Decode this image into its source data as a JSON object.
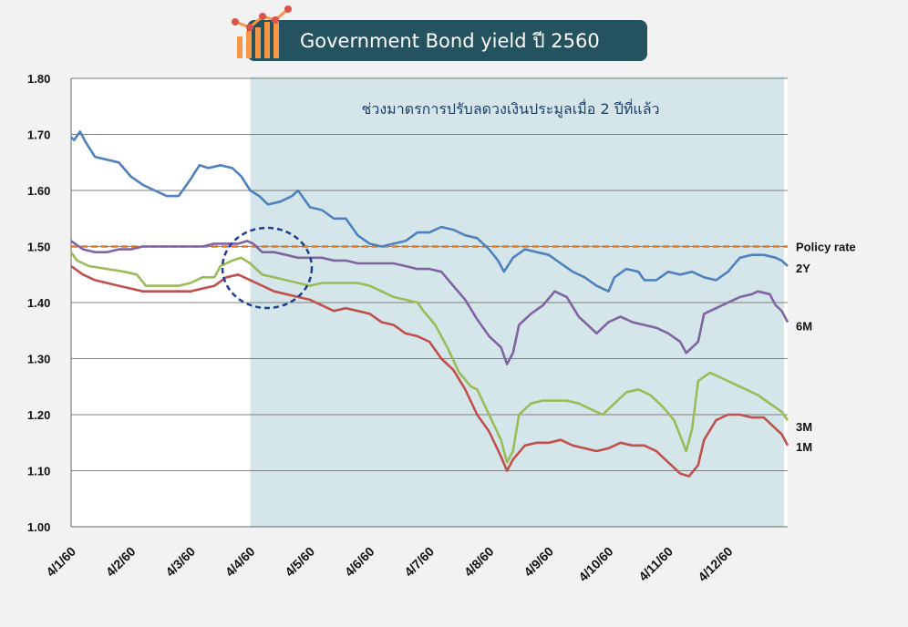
{
  "title": "Government Bond yield ปี 2560",
  "chart_data": {
    "type": "line",
    "title": "Government Bond yield ปี 2560",
    "ylim": [
      1.0,
      1.8
    ],
    "yticks": [
      "1.00",
      "1.10",
      "1.20",
      "1.30",
      "1.40",
      "1.50",
      "1.60",
      "1.70",
      "1.80"
    ],
    "xlabels": [
      "4/1/60",
      "4/2/60",
      "4/3/60",
      "4/4/60",
      "4/5/60",
      "4/6/60",
      "4/7/60",
      "4/8/60",
      "4/9/60",
      "4/10/60",
      "4/11/60",
      "4/12/60"
    ],
    "grid": true,
    "highlight": {
      "from": "4/4/60",
      "label": "ช่วงมาตรการปรับลดวงเงินประมูลเมื่อ  2 ปีที่แล้ว",
      "color": "#d5e6ea"
    },
    "policy_rate": {
      "name": "Policy rate",
      "value": 1.5,
      "color": "#e07b22"
    },
    "series": [
      {
        "name": "2Y",
        "color": "#4f81bd",
        "points": [
          [
            0,
            1.695
          ],
          [
            0.05,
            1.69
          ],
          [
            0.15,
            1.705
          ],
          [
            0.25,
            1.685
          ],
          [
            0.4,
            1.66
          ],
          [
            0.6,
            1.655
          ],
          [
            0.8,
            1.65
          ],
          [
            1.0,
            1.625
          ],
          [
            1.2,
            1.61
          ],
          [
            1.4,
            1.6
          ],
          [
            1.6,
            1.59
          ],
          [
            1.8,
            1.59
          ],
          [
            2.0,
            1.62
          ],
          [
            2.15,
            1.645
          ],
          [
            2.3,
            1.64
          ],
          [
            2.5,
            1.645
          ],
          [
            2.7,
            1.64
          ],
          [
            2.85,
            1.625
          ],
          [
            3.0,
            1.6
          ],
          [
            3.15,
            1.59
          ],
          [
            3.3,
            1.575
          ],
          [
            3.5,
            1.58
          ],
          [
            3.7,
            1.59
          ],
          [
            3.8,
            1.6
          ],
          [
            4.0,
            1.57
          ],
          [
            4.2,
            1.565
          ],
          [
            4.4,
            1.55
          ],
          [
            4.6,
            1.55
          ],
          [
            4.8,
            1.52
          ],
          [
            5.0,
            1.505
          ],
          [
            5.2,
            1.5
          ],
          [
            5.4,
            1.505
          ],
          [
            5.6,
            1.51
          ],
          [
            5.8,
            1.525
          ],
          [
            6.0,
            1.525
          ],
          [
            6.2,
            1.535
          ],
          [
            6.4,
            1.53
          ],
          [
            6.6,
            1.52
          ],
          [
            6.8,
            1.515
          ],
          [
            7.0,
            1.495
          ],
          [
            7.15,
            1.475
          ],
          [
            7.25,
            1.455
          ],
          [
            7.4,
            1.48
          ],
          [
            7.6,
            1.495
          ],
          [
            7.8,
            1.49
          ],
          [
            8.0,
            1.485
          ],
          [
            8.2,
            1.47
          ],
          [
            8.4,
            1.455
          ],
          [
            8.6,
            1.445
          ],
          [
            8.8,
            1.43
          ],
          [
            9.0,
            1.42
          ],
          [
            9.1,
            1.445
          ],
          [
            9.3,
            1.46
          ],
          [
            9.5,
            1.455
          ],
          [
            9.6,
            1.44
          ],
          [
            9.8,
            1.44
          ],
          [
            10.0,
            1.455
          ],
          [
            10.2,
            1.45
          ],
          [
            10.4,
            1.455
          ],
          [
            10.6,
            1.445
          ],
          [
            10.8,
            1.44
          ],
          [
            11.0,
            1.455
          ],
          [
            11.2,
            1.48
          ],
          [
            11.4,
            1.485
          ],
          [
            11.6,
            1.485
          ],
          [
            11.8,
            1.48
          ],
          [
            11.9,
            1.475
          ],
          [
            12.0,
            1.465
          ]
        ]
      },
      {
        "name": "6M",
        "color": "#8064a2",
        "points": [
          [
            0,
            1.51
          ],
          [
            0.2,
            1.495
          ],
          [
            0.4,
            1.49
          ],
          [
            0.6,
            1.49
          ],
          [
            0.8,
            1.495
          ],
          [
            1.0,
            1.495
          ],
          [
            1.2,
            1.5
          ],
          [
            1.4,
            1.5
          ],
          [
            1.6,
            1.5
          ],
          [
            1.8,
            1.5
          ],
          [
            2.0,
            1.5
          ],
          [
            2.2,
            1.5
          ],
          [
            2.4,
            1.505
          ],
          [
            2.6,
            1.505
          ],
          [
            2.8,
            1.505
          ],
          [
            2.95,
            1.51
          ],
          [
            3.05,
            1.505
          ],
          [
            3.2,
            1.49
          ],
          [
            3.4,
            1.49
          ],
          [
            3.6,
            1.485
          ],
          [
            3.8,
            1.48
          ],
          [
            4.0,
            1.48
          ],
          [
            4.2,
            1.48
          ],
          [
            4.4,
            1.475
          ],
          [
            4.6,
            1.475
          ],
          [
            4.8,
            1.47
          ],
          [
            5.0,
            1.47
          ],
          [
            5.2,
            1.47
          ],
          [
            5.4,
            1.47
          ],
          [
            5.6,
            1.465
          ],
          [
            5.8,
            1.46
          ],
          [
            6.0,
            1.46
          ],
          [
            6.2,
            1.455
          ],
          [
            6.4,
            1.43
          ],
          [
            6.6,
            1.405
          ],
          [
            6.8,
            1.37
          ],
          [
            7.0,
            1.34
          ],
          [
            7.2,
            1.32
          ],
          [
            7.3,
            1.29
          ],
          [
            7.4,
            1.31
          ],
          [
            7.5,
            1.36
          ],
          [
            7.7,
            1.38
          ],
          [
            7.9,
            1.395
          ],
          [
            8.1,
            1.42
          ],
          [
            8.3,
            1.41
          ],
          [
            8.5,
            1.375
          ],
          [
            8.7,
            1.355
          ],
          [
            8.8,
            1.345
          ],
          [
            9.0,
            1.365
          ],
          [
            9.2,
            1.375
          ],
          [
            9.4,
            1.365
          ],
          [
            9.6,
            1.36
          ],
          [
            9.8,
            1.355
          ],
          [
            10.0,
            1.345
          ],
          [
            10.2,
            1.33
          ],
          [
            10.3,
            1.31
          ],
          [
            10.5,
            1.33
          ],
          [
            10.6,
            1.38
          ],
          [
            10.8,
            1.39
          ],
          [
            11.0,
            1.4
          ],
          [
            11.2,
            1.41
          ],
          [
            11.4,
            1.415
          ],
          [
            11.5,
            1.42
          ],
          [
            11.7,
            1.415
          ],
          [
            11.8,
            1.395
          ],
          [
            11.9,
            1.385
          ],
          [
            12.0,
            1.365
          ]
        ]
      },
      {
        "name": "3M",
        "color": "#9bbb59",
        "points": [
          [
            0,
            1.49
          ],
          [
            0.1,
            1.475
          ],
          [
            0.3,
            1.465
          ],
          [
            0.6,
            1.46
          ],
          [
            0.9,
            1.455
          ],
          [
            1.1,
            1.45
          ],
          [
            1.25,
            1.43
          ],
          [
            1.5,
            1.43
          ],
          [
            1.8,
            1.43
          ],
          [
            2.0,
            1.435
          ],
          [
            2.2,
            1.445
          ],
          [
            2.4,
            1.445
          ],
          [
            2.5,
            1.465
          ],
          [
            2.7,
            1.475
          ],
          [
            2.85,
            1.48
          ],
          [
            3.0,
            1.47
          ],
          [
            3.2,
            1.45
          ],
          [
            3.4,
            1.445
          ],
          [
            3.6,
            1.44
          ],
          [
            3.8,
            1.435
          ],
          [
            4.0,
            1.43
          ],
          [
            4.2,
            1.435
          ],
          [
            4.4,
            1.435
          ],
          [
            4.6,
            1.435
          ],
          [
            4.8,
            1.435
          ],
          [
            5.0,
            1.43
          ],
          [
            5.2,
            1.42
          ],
          [
            5.4,
            1.41
          ],
          [
            5.6,
            1.405
          ],
          [
            5.8,
            1.4
          ],
          [
            5.9,
            1.385
          ],
          [
            6.1,
            1.36
          ],
          [
            6.3,
            1.32
          ],
          [
            6.5,
            1.275
          ],
          [
            6.7,
            1.25
          ],
          [
            6.8,
            1.245
          ],
          [
            7.0,
            1.2
          ],
          [
            7.2,
            1.155
          ],
          [
            7.3,
            1.115
          ],
          [
            7.4,
            1.135
          ],
          [
            7.5,
            1.2
          ],
          [
            7.7,
            1.22
          ],
          [
            7.9,
            1.225
          ],
          [
            8.1,
            1.225
          ],
          [
            8.3,
            1.225
          ],
          [
            8.5,
            1.22
          ],
          [
            8.7,
            1.21
          ],
          [
            8.9,
            1.2
          ],
          [
            9.1,
            1.22
          ],
          [
            9.3,
            1.24
          ],
          [
            9.5,
            1.245
          ],
          [
            9.7,
            1.235
          ],
          [
            9.9,
            1.215
          ],
          [
            10.1,
            1.19
          ],
          [
            10.3,
            1.135
          ],
          [
            10.4,
            1.175
          ],
          [
            10.5,
            1.26
          ],
          [
            10.7,
            1.275
          ],
          [
            10.9,
            1.265
          ],
          [
            11.1,
            1.255
          ],
          [
            11.3,
            1.245
          ],
          [
            11.5,
            1.235
          ],
          [
            11.7,
            1.22
          ],
          [
            11.9,
            1.205
          ],
          [
            12.0,
            1.19
          ]
        ]
      },
      {
        "name": "1M",
        "color": "#c0504d",
        "points": [
          [
            0,
            1.465
          ],
          [
            0.2,
            1.45
          ],
          [
            0.4,
            1.44
          ],
          [
            0.6,
            1.435
          ],
          [
            0.8,
            1.43
          ],
          [
            1.0,
            1.425
          ],
          [
            1.2,
            1.42
          ],
          [
            1.4,
            1.42
          ],
          [
            1.6,
            1.42
          ],
          [
            1.8,
            1.42
          ],
          [
            2.0,
            1.42
          ],
          [
            2.2,
            1.425
          ],
          [
            2.4,
            1.43
          ],
          [
            2.6,
            1.445
          ],
          [
            2.8,
            1.45
          ],
          [
            3.0,
            1.44
          ],
          [
            3.2,
            1.43
          ],
          [
            3.4,
            1.42
          ],
          [
            3.6,
            1.415
          ],
          [
            3.8,
            1.41
          ],
          [
            4.0,
            1.405
          ],
          [
            4.2,
            1.395
          ],
          [
            4.4,
            1.385
          ],
          [
            4.6,
            1.39
          ],
          [
            4.8,
            1.385
          ],
          [
            5.0,
            1.38
          ],
          [
            5.2,
            1.365
          ],
          [
            5.4,
            1.36
          ],
          [
            5.6,
            1.345
          ],
          [
            5.8,
            1.34
          ],
          [
            6.0,
            1.33
          ],
          [
            6.2,
            1.3
          ],
          [
            6.4,
            1.28
          ],
          [
            6.6,
            1.245
          ],
          [
            6.8,
            1.2
          ],
          [
            7.0,
            1.17
          ],
          [
            7.2,
            1.125
          ],
          [
            7.3,
            1.1
          ],
          [
            7.4,
            1.12
          ],
          [
            7.6,
            1.145
          ],
          [
            7.8,
            1.15
          ],
          [
            8.0,
            1.15
          ],
          [
            8.2,
            1.155
          ],
          [
            8.4,
            1.145
          ],
          [
            8.6,
            1.14
          ],
          [
            8.8,
            1.135
          ],
          [
            9.0,
            1.14
          ],
          [
            9.2,
            1.15
          ],
          [
            9.4,
            1.145
          ],
          [
            9.6,
            1.145
          ],
          [
            9.8,
            1.135
          ],
          [
            10.0,
            1.115
          ],
          [
            10.2,
            1.095
          ],
          [
            10.35,
            1.09
          ],
          [
            10.5,
            1.11
          ],
          [
            10.6,
            1.155
          ],
          [
            10.8,
            1.19
          ],
          [
            11.0,
            1.2
          ],
          [
            11.2,
            1.2
          ],
          [
            11.4,
            1.195
          ],
          [
            11.6,
            1.195
          ],
          [
            11.8,
            1.175
          ],
          [
            11.9,
            1.165
          ],
          [
            12.0,
            1.145
          ]
        ]
      }
    ]
  }
}
